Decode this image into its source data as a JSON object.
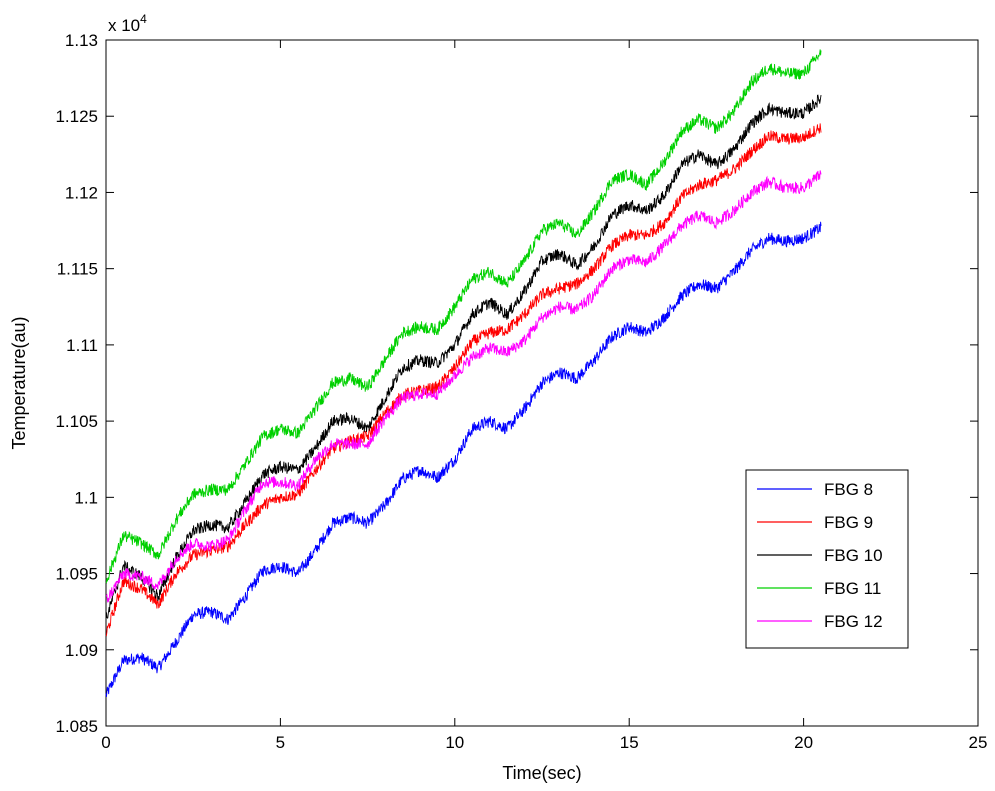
{
  "chart_data": {
    "type": "line",
    "title": "",
    "xlabel": "Time(sec)",
    "ylabel": "Temperature(au)",
    "y_exponent_label": "x 10",
    "y_exponent_power": "4",
    "xlim": [
      0,
      25
    ],
    "ylim": [
      1.085,
      1.13
    ],
    "x_ticks": [
      0,
      5,
      10,
      15,
      20,
      25
    ],
    "x_tick_labels": [
      "0",
      "5",
      "10",
      "15",
      "20",
      "25"
    ],
    "y_ticks": [
      1.085,
      1.09,
      1.095,
      1.1,
      1.105,
      1.11,
      1.115,
      1.12,
      1.125,
      1.13
    ],
    "y_tick_labels": [
      "1.085",
      "1.09",
      "1.095",
      "1.1",
      "1.105",
      "1.11",
      "1.115",
      "1.12",
      "1.125",
      "1.13"
    ],
    "grid": false,
    "legend_position": "right",
    "x": [
      0,
      0.5,
      1,
      1.5,
      2,
      2.5,
      3,
      3.5,
      4,
      4.5,
      5,
      5.5,
      6,
      6.5,
      7,
      7.5,
      8,
      8.5,
      9,
      9.5,
      10,
      10.5,
      11,
      11.5,
      12,
      12.5,
      13,
      13.5,
      14,
      14.5,
      15,
      15.5,
      16,
      16.5,
      17,
      17.5,
      18,
      18.5,
      19,
      19.5,
      20,
      20.5
    ],
    "noise_amplitude": 0.0008,
    "series": [
      {
        "name": "FBG 8",
        "color": "#0000ff",
        "values": [
          1.087,
          1.0893,
          1.0895,
          1.0888,
          1.0905,
          1.0923,
          1.0925,
          1.092,
          1.0935,
          1.0952,
          1.0955,
          1.095,
          1.0965,
          1.0983,
          1.0987,
          1.0983,
          1.0995,
          1.1012,
          1.1018,
          1.1013,
          1.1025,
          1.1045,
          1.105,
          1.1045,
          1.1058,
          1.1075,
          1.1082,
          1.1078,
          1.109,
          1.1105,
          1.1112,
          1.1108,
          1.1118,
          1.1132,
          1.114,
          1.1137,
          1.1148,
          1.1162,
          1.117,
          1.1168,
          1.117,
          1.1177
        ]
      },
      {
        "name": "FBG 9",
        "color": "#ff0000",
        "values": [
          1.091,
          1.0945,
          1.094,
          1.093,
          1.095,
          1.0962,
          1.0965,
          1.0968,
          1.0982,
          1.0995,
          1.1,
          1.1002,
          1.1018,
          1.1032,
          1.1037,
          1.104,
          1.1055,
          1.1067,
          1.107,
          1.1072,
          1.1085,
          1.1102,
          1.1108,
          1.111,
          1.112,
          1.1133,
          1.1137,
          1.114,
          1.115,
          1.1165,
          1.1172,
          1.1172,
          1.118,
          1.1197,
          1.1205,
          1.1208,
          1.1215,
          1.1227,
          1.1237,
          1.1235,
          1.1236,
          1.1243
        ]
      },
      {
        "name": "FBG 10",
        "color": "#000000",
        "values": [
          1.092,
          1.0955,
          1.0948,
          1.0935,
          1.096,
          1.0978,
          1.0982,
          1.098,
          1.0997,
          1.1015,
          1.102,
          1.1018,
          1.1032,
          1.105,
          1.1052,
          1.1045,
          1.1065,
          1.1085,
          1.109,
          1.1088,
          1.11,
          1.112,
          1.1128,
          1.112,
          1.1135,
          1.1155,
          1.116,
          1.1152,
          1.1165,
          1.1185,
          1.1192,
          1.1188,
          1.1198,
          1.1218,
          1.1225,
          1.1218,
          1.1228,
          1.1245,
          1.1255,
          1.1252,
          1.1252,
          1.1262
        ]
      },
      {
        "name": "FBG 11",
        "color": "#00d000",
        "values": [
          1.0945,
          1.0975,
          1.097,
          1.0962,
          1.0985,
          1.1002,
          1.1005,
          1.1005,
          1.1022,
          1.104,
          1.1045,
          1.1042,
          1.1058,
          1.1075,
          1.1078,
          1.1072,
          1.109,
          1.1108,
          1.1112,
          1.111,
          1.1125,
          1.1143,
          1.1148,
          1.114,
          1.1155,
          1.1175,
          1.118,
          1.1172,
          1.1188,
          1.1208,
          1.1212,
          1.1205,
          1.122,
          1.124,
          1.1248,
          1.1242,
          1.1253,
          1.1272,
          1.1282,
          1.1278,
          1.1278,
          1.1292
        ]
      },
      {
        "name": "FBG 12",
        "color": "#ff00ff",
        "values": [
          1.0932,
          1.095,
          1.0948,
          1.0942,
          1.096,
          1.097,
          1.0968,
          1.0972,
          1.0992,
          1.101,
          1.101,
          1.1008,
          1.1025,
          1.1035,
          1.1035,
          1.1035,
          1.1052,
          1.1065,
          1.1068,
          1.1068,
          1.108,
          1.1092,
          1.1098,
          1.1095,
          1.1103,
          1.1118,
          1.1125,
          1.1123,
          1.1133,
          1.115,
          1.1156,
          1.1154,
          1.1165,
          1.1178,
          1.1185,
          1.118,
          1.1188,
          1.12,
          1.1207,
          1.1203,
          1.1203,
          1.1212
        ]
      }
    ]
  }
}
